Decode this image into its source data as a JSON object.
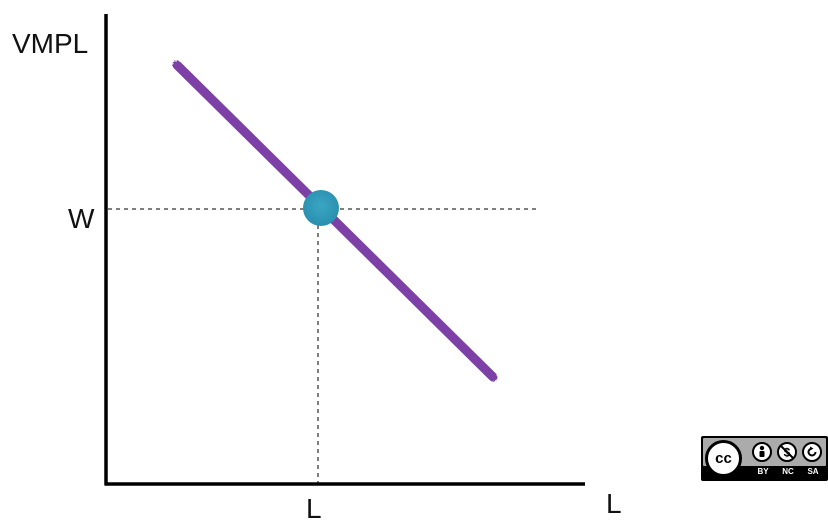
{
  "diagram": {
    "y_axis_label": "VMPL",
    "x_axis_label": "L",
    "wage_label": "W",
    "quantity_label": "L",
    "colors": {
      "curve": "#7b3fa6",
      "equilibrium_point": "#2a95b5",
      "axes": "#000000",
      "guides": "#555555"
    }
  },
  "license_badge": {
    "logo_text": "cc",
    "terms": [
      "BY",
      "NC",
      "SA"
    ],
    "icons": [
      "person-icon",
      "no-dollar-icon",
      "share-alike-icon"
    ]
  }
}
